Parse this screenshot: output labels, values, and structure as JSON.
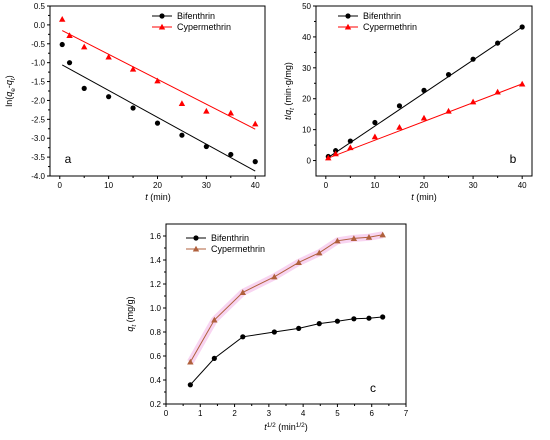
{
  "chart_data": [
    {
      "panel": "a",
      "type": "scatter",
      "xlabel": "t (min)",
      "ylabel": "ln(qe-qt)",
      "xlim": [
        -2,
        42
      ],
      "ylim": [
        -4.0,
        0.5
      ],
      "xticks": [
        0,
        10,
        20,
        30,
        40
      ],
      "yticks": [
        -4.0,
        -3.5,
        -3.0,
        -2.5,
        -2.0,
        -1.5,
        -1.0,
        -0.5,
        0.0,
        0.5
      ],
      "legend": "top-right",
      "series": [
        {
          "name": "Bifenthrin",
          "marker": "circle",
          "color": "#000000",
          "x": [
            0.5,
            2,
            5,
            10,
            15,
            20,
            25,
            30,
            35,
            40
          ],
          "y": [
            -0.52,
            -1.0,
            -1.68,
            -1.9,
            -2.2,
            -2.6,
            -2.92,
            -3.22,
            -3.43,
            -3.62
          ],
          "fit": [
            [
              0.5,
              -1.06
            ],
            [
              40,
              -3.87
            ]
          ]
        },
        {
          "name": "Cypermethrin",
          "marker": "triangle",
          "color": "#ff0000",
          "x": [
            0.5,
            2,
            5,
            10,
            15,
            20,
            25,
            30,
            35,
            40
          ],
          "y": [
            0.15,
            -0.28,
            -0.58,
            -0.85,
            -1.17,
            -1.48,
            -2.08,
            -2.28,
            -2.33,
            -2.62
          ],
          "fit": [
            [
              0.5,
              -0.15
            ],
            [
              40,
              -2.76
            ]
          ]
        }
      ]
    },
    {
      "panel": "b",
      "type": "scatter",
      "xlabel": "t (min)",
      "ylabel": "t/qt (min·g/mg)",
      "xlim": [
        -2,
        42
      ],
      "ylim": [
        -5,
        50
      ],
      "xticks": [
        0,
        10,
        20,
        30,
        40
      ],
      "yticks": [
        0,
        10,
        20,
        30,
        40,
        50
      ],
      "legend": "top-left",
      "series": [
        {
          "name": "Bifenthrin",
          "marker": "circle",
          "color": "#000000",
          "x": [
            0.5,
            2,
            5,
            10,
            15,
            20,
            25,
            30,
            35,
            40
          ],
          "y": [
            1.3,
            3.2,
            6.3,
            12.3,
            17.7,
            22.7,
            27.8,
            32.8,
            38.0,
            43.2
          ],
          "fit": [
            [
              0.5,
              1.0
            ],
            [
              40,
              43.2
            ]
          ]
        },
        {
          "name": "Cypermethrin",
          "marker": "triangle",
          "color": "#ff0000",
          "x": [
            0.5,
            2,
            5,
            10,
            15,
            20,
            25,
            30,
            35,
            40
          ],
          "y": [
            0.9,
            2.2,
            4.2,
            7.7,
            10.8,
            13.8,
            16.0,
            19.0,
            22.2,
            24.8
          ],
          "fit": [
            [
              0.5,
              0.8
            ],
            [
              40,
              24.8
            ]
          ]
        }
      ]
    },
    {
      "panel": "c",
      "type": "line",
      "xlabel": "t1/2 (min1/2)",
      "ylabel": "qt (mg/g)",
      "xlim": [
        0,
        7
      ],
      "ylim": [
        0.2,
        1.7
      ],
      "xticks": [
        0,
        1,
        2,
        3,
        4,
        5,
        6,
        7
      ],
      "yticks": [
        0.2,
        0.4,
        0.6,
        0.8,
        1.0,
        1.2,
        1.4,
        1.6
      ],
      "legend": "top-left",
      "series": [
        {
          "name": "Bifenthrin",
          "marker": "circle",
          "color": "#000000",
          "x": [
            0.71,
            1.41,
            2.24,
            3.16,
            3.87,
            4.47,
            5.0,
            5.48,
            5.92,
            6.32
          ],
          "y": [
            0.36,
            0.58,
            0.76,
            0.8,
            0.83,
            0.87,
            0.89,
            0.91,
            0.915,
            0.925
          ]
        },
        {
          "name": "Cypermethrin",
          "marker": "triangle",
          "color": "#b0603c",
          "x": [
            0.71,
            1.41,
            2.24,
            3.16,
            3.87,
            4.47,
            5.0,
            5.48,
            5.92,
            6.32
          ],
          "y": [
            0.55,
            0.9,
            1.13,
            1.26,
            1.38,
            1.46,
            1.56,
            1.58,
            1.59,
            1.61
          ]
        }
      ]
    }
  ]
}
